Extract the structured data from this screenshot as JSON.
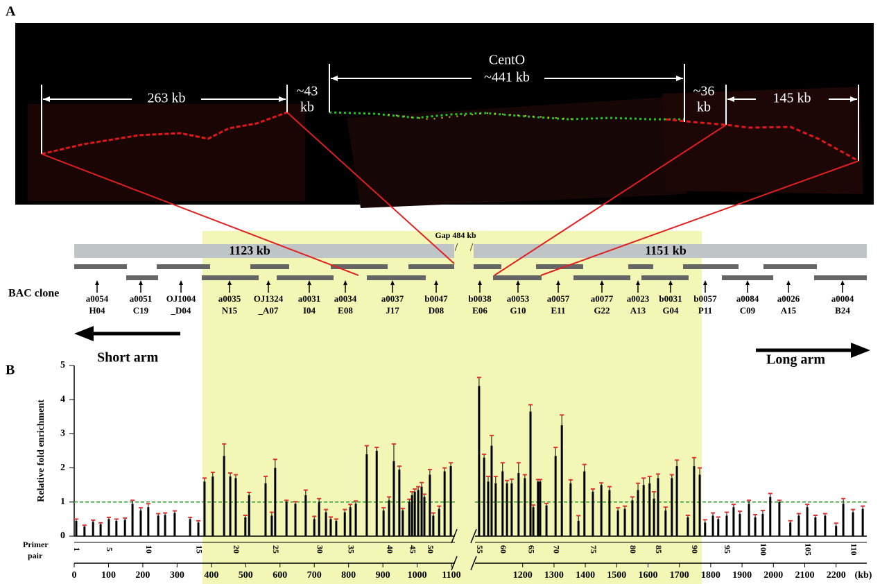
{
  "panel_a": {
    "label": "A",
    "left_length": "263 kb",
    "left_gap": [
      "~43",
      "kb"
    ],
    "cento": "CentO",
    "cento_length": "~441 kb",
    "right_gap": [
      "~36",
      "kb"
    ],
    "right_length": "145 kb"
  },
  "bac_map": {
    "gap": "Gap 484 kb",
    "contig_left": "1123 kb",
    "contig_right": "1151 kb",
    "row_label": "BAC clone",
    "short_arm": "Short arm",
    "long_arm": "Long arm",
    "clones": [
      [
        "a0054",
        "H04"
      ],
      [
        "a0051",
        "C19"
      ],
      [
        "OJ1004",
        "_D04"
      ],
      [
        "a0035",
        "N15"
      ],
      [
        "OJ1324",
        "_A07"
      ],
      [
        "a0031",
        "I04"
      ],
      [
        "a0034",
        "E08"
      ],
      [
        "a0037",
        "J17"
      ],
      [
        "b0047",
        "D08"
      ],
      [
        "b0038",
        "E06"
      ],
      [
        "a0053",
        "G10"
      ],
      [
        "a0057",
        "E11"
      ],
      [
        "a0077",
        "G22"
      ],
      [
        "a0023",
        "A13"
      ],
      [
        "b0031",
        "G04"
      ],
      [
        "b0057",
        "P11"
      ],
      [
        "a0084",
        "C09"
      ],
      [
        "a0026",
        "A15"
      ],
      [
        "a0004",
        "B24"
      ]
    ]
  },
  "chart_data": {
    "type": "bar",
    "panel_label": "B",
    "y_label": "Relative fold enrichment",
    "ylim": [
      0,
      5
    ],
    "yticks": [
      0,
      1,
      2,
      3,
      4,
      5
    ],
    "x_unit": "(kb)",
    "primer_label": [
      "Primer",
      "pair"
    ],
    "primer_ticks": [
      1,
      5,
      10,
      15,
      20,
      25,
      30,
      35,
      40,
      45,
      50,
      55,
      60,
      65,
      70,
      75,
      80,
      85,
      90,
      95,
      100,
      105,
      110
    ],
    "reference_line": 1,
    "color": "#000000",
    "error_color": "#e53030",
    "reference_color": "#2a9d2a",
    "segments": [
      {
        "xlim": [
          0,
          1110
        ],
        "xticks": [
          0,
          100,
          200,
          300,
          400,
          500,
          600,
          700,
          800,
          900,
          1000,
          1100
        ],
        "x": [
          6,
          30,
          55,
          77,
          101,
          123,
          148,
          170,
          194,
          216,
          245,
          265,
          293,
          338,
          362,
          380,
          404,
          437,
          455,
          471,
          499,
          510,
          558,
          576,
          586,
          619,
          645,
          675,
          700,
          714,
          734,
          748,
          764,
          789,
          805,
          821,
          853,
          882,
          902,
          918,
          932,
          948,
          958,
          977,
          985,
          993,
          1003,
          1013,
          1021,
          1037,
          1047,
          1064,
          1080,
          1098
        ],
        "values": [
          0.45,
          0.28,
          0.42,
          0.35,
          0.5,
          0.45,
          0.48,
          0.95,
          0.75,
          0.85,
          0.6,
          0.62,
          0.68,
          0.5,
          0.4,
          1.6,
          1.75,
          2.35,
          1.75,
          1.7,
          0.55,
          1.2,
          1.55,
          0.6,
          2.0,
          1.0,
          0.95,
          1.2,
          0.5,
          1.0,
          0.7,
          0.5,
          0.45,
          0.7,
          0.85,
          0.95,
          2.4,
          2.5,
          0.75,
          1.05,
          2.2,
          1.95,
          0.75,
          1.0,
          1.2,
          1.3,
          1.35,
          1.45,
          1.15,
          1.8,
          0.6,
          0.8,
          1.9,
          2.05
        ],
        "errors": [
          0.05,
          0.04,
          0.05,
          0.04,
          0.05,
          0.05,
          0.05,
          0.1,
          0.08,
          0.1,
          0.06,
          0.06,
          0.06,
          0.05,
          0.05,
          0.1,
          0.12,
          0.35,
          0.1,
          0.1,
          0.06,
          0.08,
          0.2,
          0.1,
          0.25,
          0.05,
          0.06,
          0.15,
          0.08,
          0.1,
          0.08,
          0.06,
          0.05,
          0.08,
          0.08,
          0.08,
          0.25,
          0.1,
          0.08,
          0.1,
          0.5,
          0.1,
          0.06,
          0.08,
          0.1,
          0.08,
          0.1,
          0.12,
          0.08,
          0.15,
          0.08,
          0.08,
          0.1,
          0.1
        ]
      },
      {
        "xlim": [
          1048,
          2298
        ],
        "xticks": [
          1200,
          1300,
          1400,
          1500,
          1600,
          1700,
          1800,
          1900,
          2000,
          2100,
          2200
        ],
        "x": [
          1061,
          1077,
          1090,
          1101,
          1114,
          1136,
          1150,
          1165,
          1187,
          1207,
          1225,
          1234,
          1249,
          1256,
          1276,
          1305,
          1325,
          1353,
          1378,
          1397,
          1424,
          1451,
          1477,
          1504,
          1526,
          1550,
          1568,
          1586,
          1605,
          1619,
          1632,
          1656,
          1676,
          1692,
          1727,
          1747,
          1765,
          1782,
          1807,
          1824,
          1851,
          1873,
          1893,
          1922,
          1942,
          1966,
          1990,
          2019,
          2054,
          2081,
          2108,
          2134,
          2165,
          2200,
          2223,
          2254,
          2285
        ],
        "values": [
          4.4,
          2.3,
          1.6,
          2.65,
          1.55,
          1.9,
          1.55,
          1.55,
          1.85,
          1.7,
          3.65,
          0.85,
          1.6,
          1.6,
          0.9,
          2.35,
          3.25,
          1.55,
          0.45,
          1.9,
          1.3,
          1.5,
          1.35,
          0.75,
          0.8,
          1.05,
          1.35,
          1.5,
          1.55,
          1.1,
          1.7,
          0.75,
          1.7,
          2.05,
          0.55,
          2.05,
          1.8,
          0.4,
          0.6,
          0.5,
          0.6,
          0.85,
          0.65,
          0.95,
          0.55,
          0.65,
          1.15,
          1.0,
          0.4,
          0.6,
          0.85,
          0.55,
          0.6,
          0.3,
          0.95,
          0.7,
          0.8
        ],
        "errors": [
          0.25,
          0.1,
          0.15,
          0.3,
          0.2,
          0.25,
          0.08,
          0.12,
          0.3,
          0.1,
          0.2,
          0.06,
          0.06,
          0.06,
          0.06,
          0.25,
          0.3,
          0.1,
          0.15,
          0.2,
          0.08,
          0.06,
          0.1,
          0.08,
          0.08,
          0.1,
          0.2,
          0.2,
          0.2,
          0.2,
          0.12,
          0.1,
          0.1,
          0.18,
          0.06,
          0.25,
          0.2,
          0.08,
          0.08,
          0.06,
          0.1,
          0.08,
          0.08,
          0.1,
          0.08,
          0.1,
          0.1,
          0.05,
          0.05,
          0.06,
          0.08,
          0.06,
          0.06,
          0.08,
          0.15,
          0.08,
          0.08
        ]
      }
    ]
  }
}
